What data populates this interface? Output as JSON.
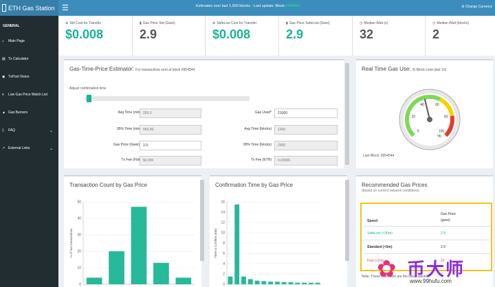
{
  "app": {
    "title": "ETH Gas Station"
  },
  "header": {
    "estimates": "Estimates over last 1,500 blocks - Last update: Block",
    "block": "6954561",
    "change_currency": "Change Currency"
  },
  "sidebar": {
    "section": "GENERAL",
    "items": [
      {
        "label": "Main Page",
        "icon": "home-icon",
        "glyph": "⌂",
        "chevron": false
      },
      {
        "label": "Tx Calculator",
        "icon": "calculator-icon",
        "glyph": "▤",
        "chevron": false
      },
      {
        "label": "TxPool Vision",
        "icon": "eye-icon",
        "glyph": "◉",
        "chevron": false
      },
      {
        "label": "Low Gas Price Watch List",
        "icon": "list-icon",
        "glyph": "≡",
        "chevron": false
      },
      {
        "label": "Gas Burners",
        "icon": "fire-icon",
        "glyph": "▲",
        "chevron": false
      },
      {
        "label": "FAQ",
        "icon": "book-icon",
        "glyph": "▯",
        "chevron": true
      },
      {
        "label": "External Links",
        "icon": "link-icon",
        "glyph": "↗",
        "chevron": true
      }
    ]
  },
  "stats": [
    {
      "label": "Std Cost for Transfer",
      "value": "$0.008",
      "color": "#1ab394",
      "icon": "dollar-icon",
      "glyph": "⊕"
    },
    {
      "label": "Gas Price Std (Gwei)",
      "value": "2.9",
      "color": "#555555",
      "icon": "gas-icon",
      "glyph": "▮"
    },
    {
      "label": "SafeLow Cost for Transfer",
      "value": "$0.008",
      "color": "#1ab394",
      "icon": "dollar-icon",
      "glyph": "⊕"
    },
    {
      "label": "Gas Price SafeLow (Gwei)",
      "value": "2.9",
      "color": "#1ab394",
      "icon": "gas-icon",
      "glyph": "▮"
    },
    {
      "label": "Median Wait (s)",
      "value": "32",
      "color": "#555555",
      "icon": "clock-icon",
      "glyph": "◷"
    },
    {
      "label": "Median Wait (blocks)",
      "value": "2",
      "color": "#555555",
      "icon": "clock-icon",
      "glyph": "◷"
    }
  ],
  "estimator": {
    "title": "Gas-Time-Price Estimator:",
    "subtitle": "For transactions sent at block 6954544",
    "adjust": "Adjust confirmation time",
    "fields": {
      "avg_time_min_label": "Avg Time (min)",
      "avg_time_min": "255.0",
      "pct_time_min_label": "95% Time (min)",
      "pct_time_min": "666.95",
      "gas_price_label": "Gas Price (Gwei)*",
      "gas_price": "2.9",
      "tx_fee_label": "Tx Fee (Fiat)",
      "tx_fee": "$0.000",
      "gas_used_label": "Gas Used*",
      "gas_used": "21000",
      "avg_time_blocks_label": "Avg Time (blocks)",
      "avg_time_blocks": "1000",
      "pct_time_blocks_label": "95% Time (blocks)",
      "pct_time_blocks": "2500",
      "tx_fee_eth_label": "Tx Fee (ETH)",
      "tx_fee_eth": "0.00006"
    }
  },
  "gauge": {
    "title": "Real Time Gas Use:",
    "subtitle": "% Block Limit (last 10)",
    "value": 45,
    "ticks": [
      "0",
      "20",
      "40",
      "60",
      "80",
      "100"
    ],
    "unit": "%",
    "last_block": "Last Block: 6954544"
  },
  "tx_count": {
    "title": "Transaction Count by Gas Price",
    "ylabel": "% of last transactions",
    "chart_data": {
      "type": "bar",
      "ylabel": "% of last transactions",
      "ylim": [
        0,
        50
      ],
      "yticks": [
        0,
        10,
        20,
        30,
        40,
        50
      ],
      "values": [
        4,
        20,
        47,
        13,
        4
      ],
      "color": "#26b99a"
    }
  },
  "conf_time": {
    "title": "Confirmation Time by Gas Price",
    "ylabel": "Time to Confirm (min)",
    "chart_data": {
      "type": "bar",
      "ylabel": "Time to Confirm (min)",
      "ylim": [
        0,
        16
      ],
      "yticks": [
        0,
        2,
        4,
        6,
        8,
        10,
        12,
        14,
        16
      ],
      "values": [
        1.5,
        15.5,
        1.5,
        1,
        0.7,
        0.6,
        0.5,
        0.5,
        0.4,
        0.4,
        0.3,
        0.3,
        0.3,
        0.3
      ],
      "color": "#26b99a"
    }
  },
  "recommended": {
    "title": "Recommended Gas Prices",
    "subtitle": "(based on current network conditions)",
    "col_speed": "Speed",
    "col_price_1": "Gas Price",
    "col_price_2": "(gwei)",
    "rows": [
      {
        "speed": "SafeLow (<30m)",
        "price": "2.9"
      },
      {
        "speed": "Standard (<5m)",
        "price": "2.9"
      },
      {
        "speed": "Fast (<2m)",
        "price": "20"
      }
    ],
    "note": "Note: These estimates are the latest values..."
  },
  "watermark": {
    "brand": "币大师",
    "url": "www.99hufu.com"
  }
}
